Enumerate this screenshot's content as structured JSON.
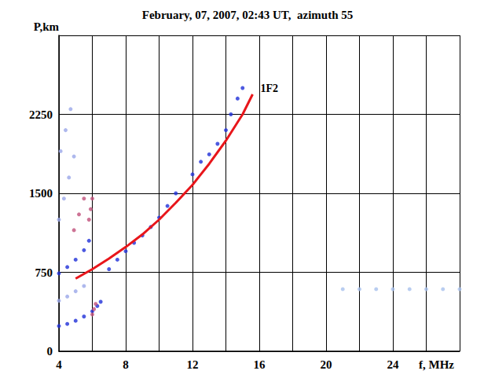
{
  "chart_data": {
    "type": "scatter",
    "title": "February, 07, 2007, 02:43 UT,  azimuth 55",
    "x_label": "f, MHz",
    "y_label": "P,km",
    "xlim": [
      4,
      28
    ],
    "xticks": [
      4,
      8,
      12,
      16,
      20,
      24
    ],
    "ylim": [
      0,
      3000
    ],
    "yticks": [
      0,
      750,
      1500,
      2250
    ],
    "grid": true,
    "series": [
      {
        "color": "#1f2fd8",
        "marker": "circle",
        "x": [
          7.0,
          7.5,
          8.0,
          8.5,
          9.0,
          9.5,
          10.0,
          10.5,
          11.0,
          12.0,
          12.5,
          13.0,
          13.5,
          14.0,
          14.3,
          14.7,
          15.0
        ],
        "values": [
          780,
          870,
          950,
          1030,
          1100,
          1180,
          1270,
          1380,
          1500,
          1680,
          1800,
          1870,
          1970,
          2100,
          2250,
          2400,
          2500
        ]
      },
      {
        "color": "#1f2fd8",
        "marker": "circle",
        "x": [
          4.0,
          4.5,
          5.0,
          5.5,
          6.0,
          6.3,
          6.5
        ],
        "values": [
          240,
          260,
          290,
          330,
          380,
          430,
          470
        ]
      },
      {
        "color": "#1f2fd8",
        "marker": "circle",
        "x": [
          4.0,
          4.5,
          5.0,
          5.5,
          5.8
        ],
        "values": [
          740,
          800,
          870,
          960,
          1050
        ]
      },
      {
        "color": "#9aa6e8",
        "marker": "circle",
        "x": [
          4.0,
          4.3,
          4.6,
          4.9,
          4.1,
          4.4,
          4.7,
          4.0,
          4.5,
          5.0,
          5.5
        ],
        "values": [
          1250,
          1450,
          1650,
          1850,
          1900,
          2100,
          2300,
          480,
          520,
          570,
          620
        ]
      },
      {
        "color": "#c0507a",
        "marker": "circle",
        "x": [
          4.9,
          5.2,
          5.5,
          5.8,
          5.9,
          6.0,
          6.0,
          6.1,
          6.2
        ],
        "values": [
          1150,
          1300,
          1450,
          1250,
          1350,
          1450,
          350,
          400,
          450
        ]
      },
      {
        "color": "#a8c0ec",
        "marker": "circle",
        "x": [
          21,
          22,
          23,
          24,
          25,
          26,
          27,
          28
        ],
        "values": [
          590,
          590,
          590,
          590,
          590,
          590,
          590,
          590
        ]
      },
      {
        "name": "1F2",
        "type": "line",
        "line_style": "solid",
        "color": "#e8161b",
        "marker": "none",
        "x": [
          5.0,
          6.0,
          7.0,
          8.0,
          9.0,
          10.0,
          11.0,
          12.0,
          13.0,
          14.0,
          15.0,
          15.6
        ],
        "values": [
          690,
          780,
          880,
          990,
          1110,
          1250,
          1410,
          1580,
          1780,
          2000,
          2250,
          2440
        ]
      }
    ]
  }
}
